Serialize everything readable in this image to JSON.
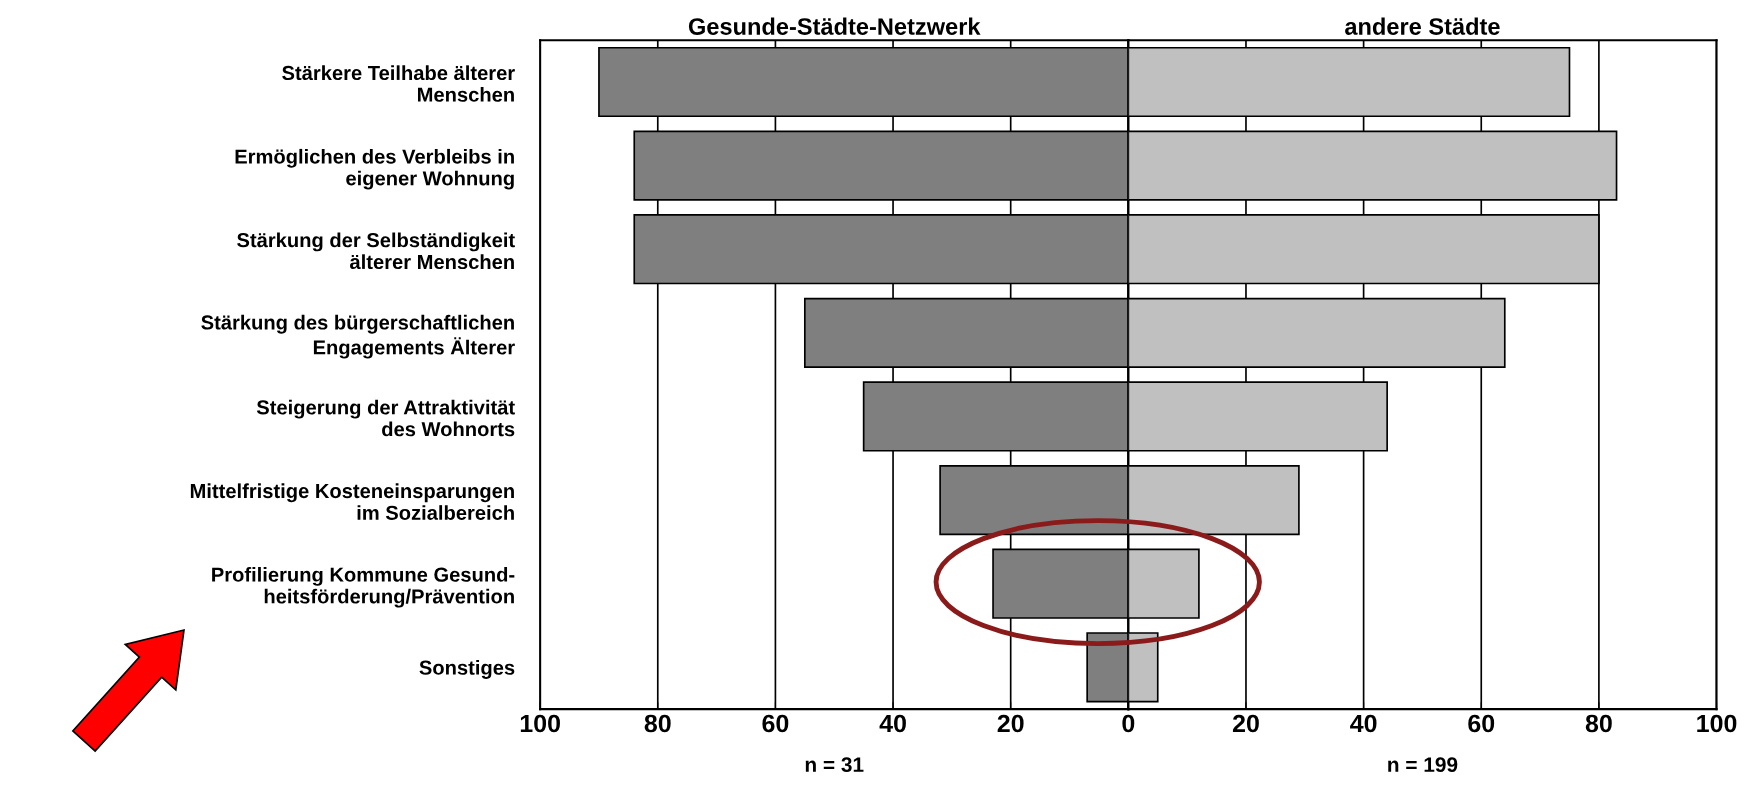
{
  "chart_data": [
    {
      "type": "bar",
      "orientation": "horizontal",
      "title": "Gesunde-Städte-Netzwerk",
      "xlabel": "n = 31",
      "categories": [
        "Stärkere Teilhabe älterer\nMenschen",
        "Ermöglichen des Verbleibs in\neigener Wohnung",
        "Stärkung der Selbständigkeit\nälterer Menschen",
        "Stärkung des bürgerschaftlichen\nEngagements Älterer",
        "Steigerung der Attraktivität\ndes Wohnorts",
        "Mittelfristige Kosteneinsparungen\nim Sozialbereich",
        "Profilierung Kommune Gesund-\nheitsförderung/Prävention",
        "Sonstiges"
      ],
      "values": [
        90,
        84,
        84,
        55,
        45,
        32,
        23,
        7
      ],
      "color": "#7f7f7f",
      "xlim": [
        100,
        0
      ],
      "xticks": [
        100,
        80,
        60,
        40,
        20,
        {
          "value": 0,
          "label": null
        }
      ],
      "grid": "x"
    },
    {
      "type": "bar",
      "orientation": "horizontal",
      "title": "andere Städte",
      "xlabel": "n = 199",
      "categories": [
        null,
        null,
        null,
        null,
        null,
        null,
        null,
        null
      ],
      "values": [
        75,
        83,
        80,
        64,
        44,
        29,
        12,
        5
      ],
      "color": "#c0c0c0",
      "xlim": [
        0,
        100
      ],
      "xticks": [
        0,
        20,
        40,
        60,
        80,
        100
      ],
      "grid": "x",
      "tick_labels": "x"
    }
  ]
}
